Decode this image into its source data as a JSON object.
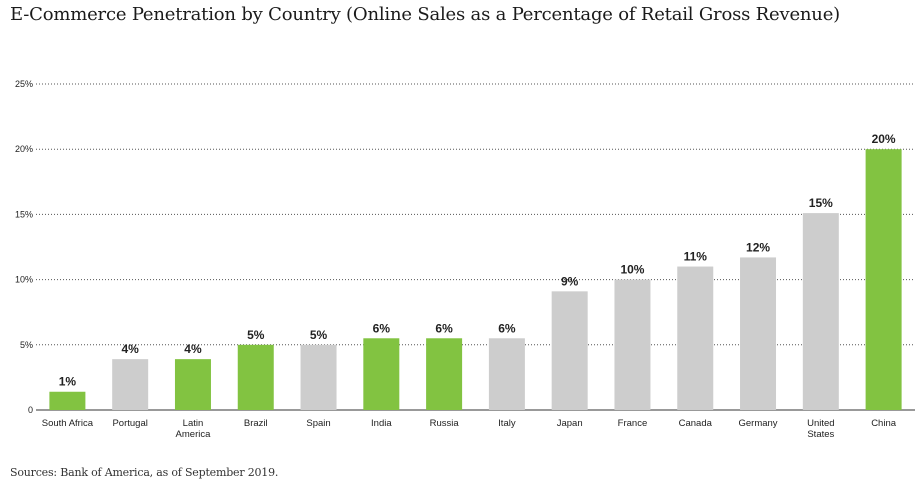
{
  "title": "E-Commerce Penetration by Country (Online Sales as a Percentage of Retail Gross Revenue)",
  "source": "Sources: Bank of America, as of September 2019.",
  "colors": {
    "highlight": "#82c341",
    "neutral": "#cdcdcd"
  },
  "chart_data": {
    "type": "bar",
    "title": "E-Commerce Penetration by Country (Online Sales as a Percentage of Retail Gross Revenue)",
    "xlabel": "",
    "ylabel": "",
    "ylim": [
      0,
      25
    ],
    "yticks": [
      0,
      5,
      10,
      15,
      20,
      25
    ],
    "ytick_labels": [
      "0",
      "5%",
      "10%",
      "15%",
      "20%",
      "25%"
    ],
    "grid": "horizontal-dotted",
    "categories": [
      "South Africa",
      "Portugal",
      "Latin America",
      "Brazil",
      "Spain",
      "India",
      "Russia",
      "Italy",
      "Japan",
      "France",
      "Canada",
      "Germany",
      "United States",
      "China"
    ],
    "category_lines": [
      [
        "South Africa"
      ],
      [
        "Portugal"
      ],
      [
        "Latin",
        "America"
      ],
      [
        "Brazil"
      ],
      [
        "Spain"
      ],
      [
        "India"
      ],
      [
        "Russia"
      ],
      [
        "Italy"
      ],
      [
        "Japan"
      ],
      [
        "France"
      ],
      [
        "Canada"
      ],
      [
        "Germany"
      ],
      [
        "United",
        "States"
      ],
      [
        "China"
      ]
    ],
    "values": [
      1.4,
      3.9,
      3.9,
      5.0,
      5.0,
      5.5,
      5.5,
      5.5,
      9.1,
      10.0,
      11.0,
      11.7,
      15.1,
      20.0
    ],
    "data_labels": [
      "1%",
      "4%",
      "4%",
      "5%",
      "5%",
      "6%",
      "6%",
      "6%",
      "9%",
      "10%",
      "11%",
      "12%",
      "15%",
      "20%"
    ],
    "highlighted": [
      true,
      false,
      true,
      true,
      false,
      true,
      true,
      false,
      false,
      false,
      false,
      false,
      false,
      true
    ]
  }
}
